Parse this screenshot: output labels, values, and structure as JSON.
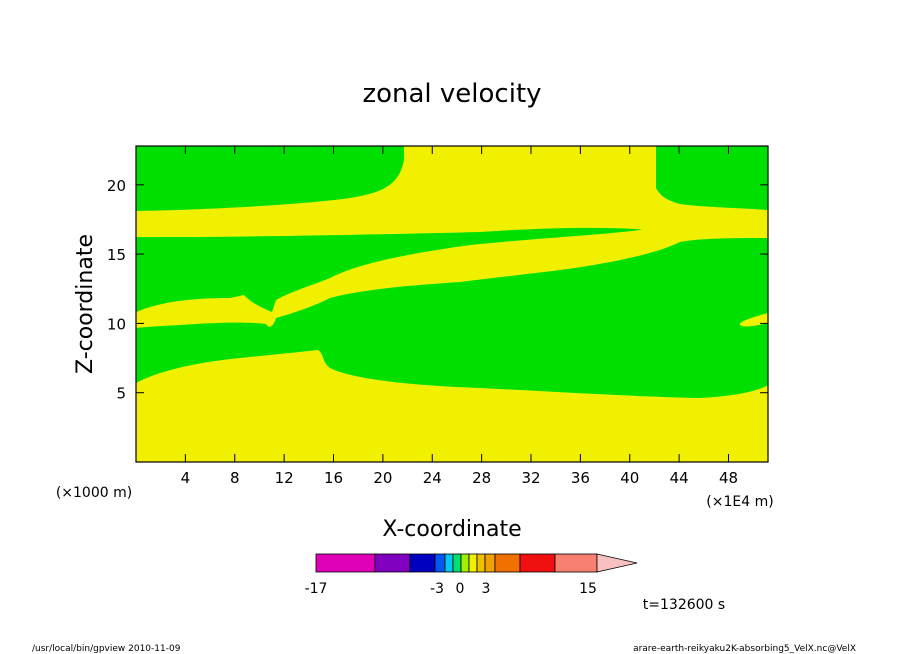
{
  "chart_data": {
    "type": "contour",
    "title": "zonal velocity",
    "xlabel": "X-coordinate",
    "ylabel": "Z-coordinate",
    "x_unit_left": "(×1000 m)",
    "x_unit_right": "(×1E4 m)",
    "x_ticks": [
      "4",
      "8",
      "12",
      "16",
      "20",
      "24",
      "28",
      "32",
      "36",
      "40",
      "44",
      "48"
    ],
    "x_tick_values": [
      4,
      8,
      12,
      16,
      20,
      24,
      28,
      32,
      36,
      40,
      44,
      48
    ],
    "xlim": [
      0,
      51.2
    ],
    "y_ticks": [
      "5",
      "10",
      "15",
      "20"
    ],
    "y_tick_values": [
      5,
      10,
      15,
      20
    ],
    "ylim": [
      0,
      22.8
    ],
    "grid": false,
    "field_colors": {
      "low_band": "#f0f000",
      "high_band": "#00e000"
    },
    "colorbar": {
      "colors": [
        "#e000b8",
        "#8000c0",
        "#0000c0",
        "#0058f0",
        "#00c8f0",
        "#00e070",
        "#a0f000",
        "#f0f000",
        "#f0c000",
        "#f0a000",
        "#f07000",
        "#f01010",
        "#f88070",
        "#f8c0c0"
      ],
      "labels": [
        "-17",
        "-3",
        "0",
        "3",
        "15"
      ]
    },
    "time_label": "t=132600 s",
    "footer_left": "/usr/local/bin/gpview  2010-11-09",
    "footer_right": "arare-earth-reikyaku2K-absorbing5_VelX.nc@VelX"
  }
}
